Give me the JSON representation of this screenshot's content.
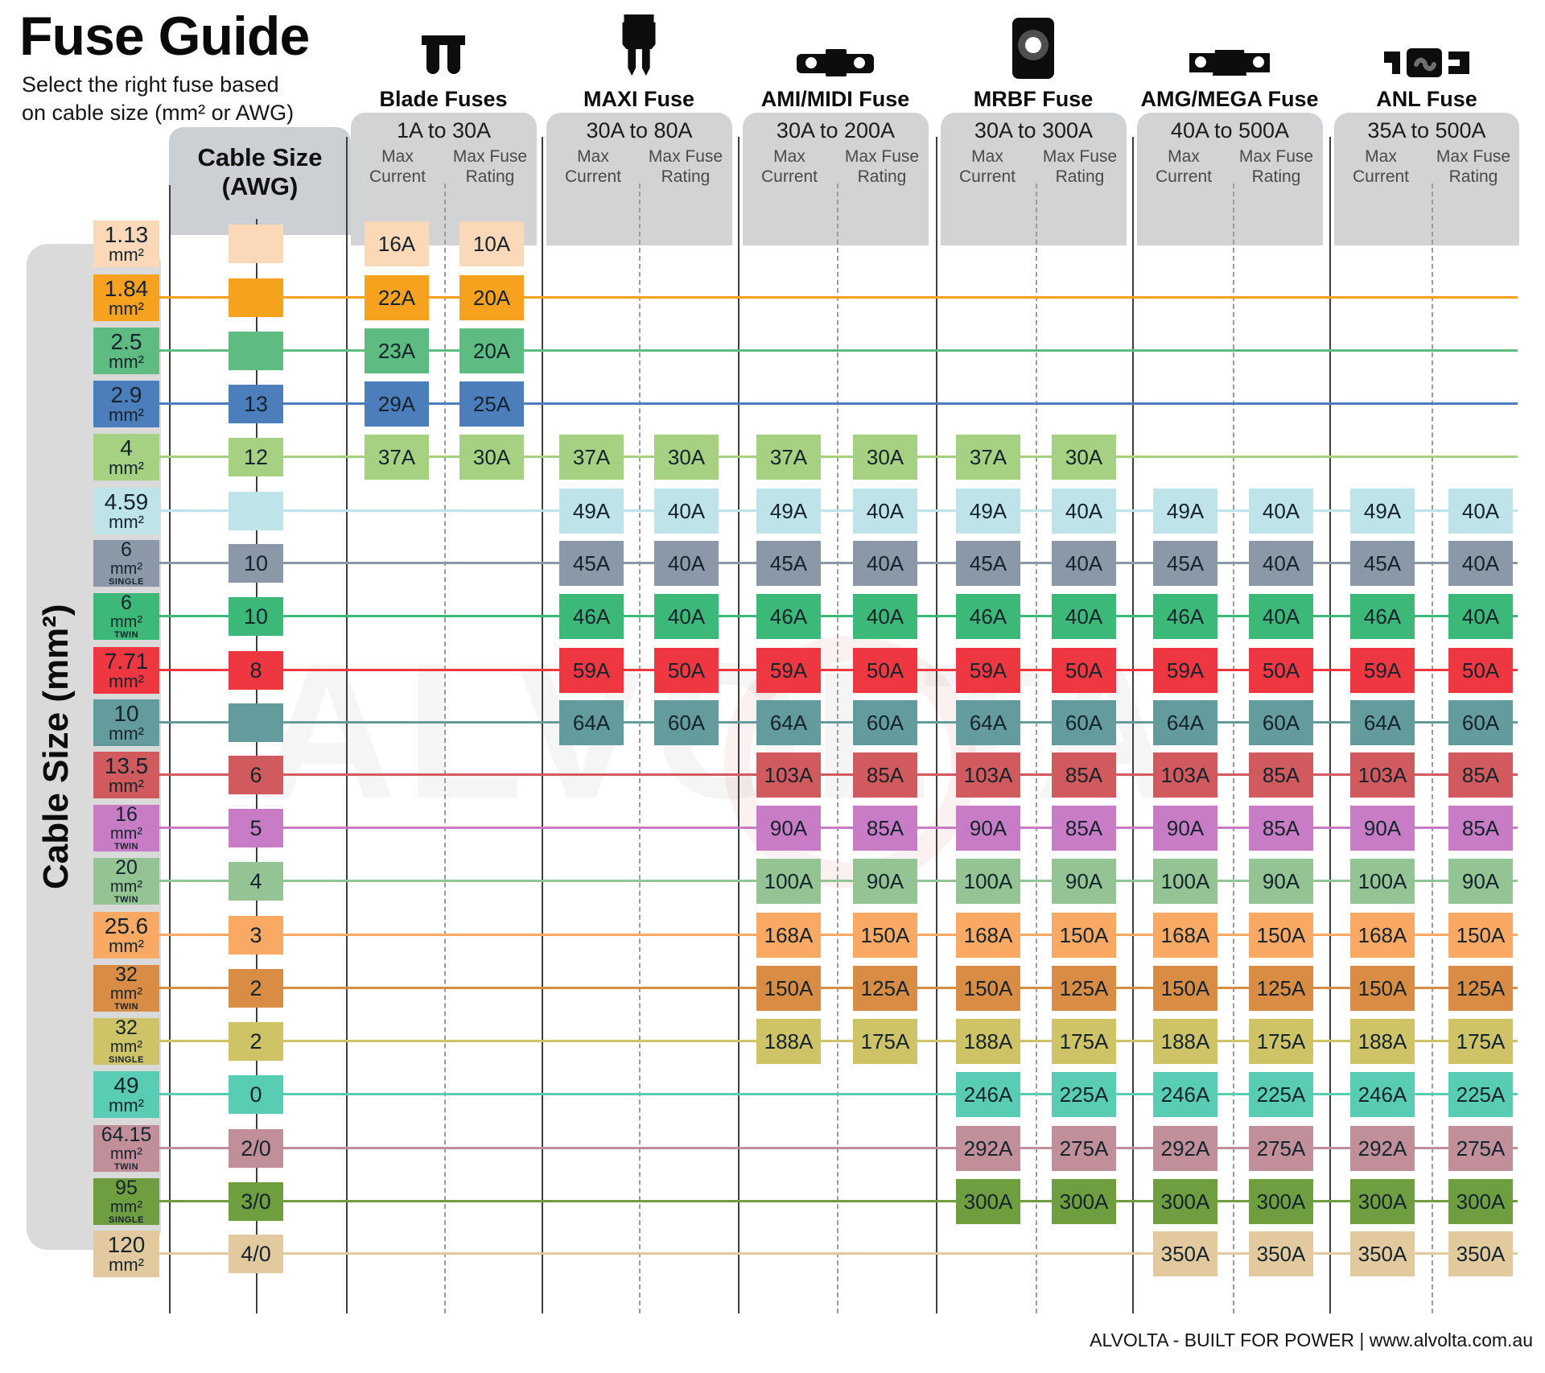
{
  "title": "Fuse Guide",
  "subtitle": "Select the right fuse based\non cable size (mm² or AWG)",
  "left_axis_label": "Cable Size (mm²)",
  "awg_header": "Cable Size\n(AWG)",
  "mm2_unit": "mm²",
  "col_headers": {
    "max_current": "Max\nCurrent",
    "max_fuse_rating": "Max Fuse\nRating"
  },
  "fuse_types": [
    {
      "name": "Blade Fuses",
      "range": "1A to 30A",
      "icon": "blade-fuse-icon"
    },
    {
      "name": "MAXI Fuse",
      "range": "30A to 80A",
      "icon": "maxi-fuse-icon"
    },
    {
      "name": "AMI/MIDI Fuse",
      "range": "30A to 200A",
      "icon": "ami-midi-fuse-icon"
    },
    {
      "name": "MRBF Fuse",
      "range": "30A to 300A",
      "icon": "mrbf-fuse-icon"
    },
    {
      "name": "AMG/MEGA Fuse",
      "range": "40A to 500A",
      "icon": "amg-mega-fuse-icon"
    },
    {
      "name": "ANL Fuse",
      "range": "35A to 500A",
      "icon": "anl-fuse-icon"
    }
  ],
  "watermark": "ALVOLTA",
  "footer": "ALVOLTA - BUILT FOR POWER | www.alvolta.com.au",
  "chart_data": {
    "type": "table",
    "row_axis": "Cable Size (mm²)",
    "secondary_row_axis": "Cable Size (AWG)",
    "groups": [
      "Blade Fuses",
      "MAXI Fuse",
      "AMI/MIDI Fuse",
      "MRBF Fuse",
      "AMG/MEGA Fuse",
      "ANL Fuse"
    ],
    "group_ranges": [
      "1A to 30A",
      "30A to 80A",
      "30A to 200A",
      "30A to 300A",
      "40A to 500A",
      "35A to 500A"
    ],
    "columns_per_group": [
      "Max Current",
      "Max Fuse Rating"
    ],
    "rows": [
      {
        "mm2": "1.13",
        "note": "",
        "awg": "",
        "color": "#FBD9B8",
        "line": false,
        "values": [
          [
            "16A",
            "10A"
          ],
          null,
          null,
          null,
          null,
          null
        ]
      },
      {
        "mm2": "1.84",
        "note": "",
        "awg": "",
        "color": "#F6A21E",
        "line": true,
        "values": [
          [
            "22A",
            "20A"
          ],
          null,
          null,
          null,
          null,
          null
        ]
      },
      {
        "mm2": "2.5",
        "note": "",
        "awg": "",
        "color": "#5EBC82",
        "line": true,
        "values": [
          [
            "23A",
            "20A"
          ],
          null,
          null,
          null,
          null,
          null
        ]
      },
      {
        "mm2": "2.9",
        "note": "",
        "awg": "13",
        "color": "#4B7EBB",
        "line": true,
        "values": [
          [
            "29A",
            "25A"
          ],
          null,
          null,
          null,
          null,
          null
        ]
      },
      {
        "mm2": "4",
        "note": "",
        "awg": "12",
        "color": "#A6D183",
        "line": true,
        "values": [
          [
            "37A",
            "30A"
          ],
          [
            "37A",
            "30A"
          ],
          [
            "37A",
            "30A"
          ],
          [
            "37A",
            "30A"
          ],
          null,
          null
        ]
      },
      {
        "mm2": "4.59",
        "note": "",
        "awg": "",
        "color": "#BEE3E8",
        "line": true,
        "values": [
          null,
          [
            "49A",
            "40A"
          ],
          [
            "49A",
            "40A"
          ],
          [
            "49A",
            "40A"
          ],
          [
            "49A",
            "40A"
          ],
          [
            "49A",
            "40A"
          ]
        ]
      },
      {
        "mm2": "6",
        "note": "SINGLE",
        "awg": "10",
        "color": "#8A98A8",
        "line": true,
        "values": [
          null,
          [
            "45A",
            "40A"
          ],
          [
            "45A",
            "40A"
          ],
          [
            "45A",
            "40A"
          ],
          [
            "45A",
            "40A"
          ],
          [
            "45A",
            "40A"
          ]
        ]
      },
      {
        "mm2": "6",
        "note": "TWIN",
        "awg": "10",
        "color": "#3CB878",
        "line": true,
        "values": [
          null,
          [
            "46A",
            "40A"
          ],
          [
            "46A",
            "40A"
          ],
          [
            "46A",
            "40A"
          ],
          [
            "46A",
            "40A"
          ],
          [
            "46A",
            "40A"
          ]
        ]
      },
      {
        "mm2": "7.71",
        "note": "",
        "awg": "8",
        "color": "#EE3740",
        "line": true,
        "values": [
          null,
          [
            "59A",
            "50A"
          ],
          [
            "59A",
            "50A"
          ],
          [
            "59A",
            "50A"
          ],
          [
            "59A",
            "50A"
          ],
          [
            "59A",
            "50A"
          ]
        ]
      },
      {
        "mm2": "10",
        "note": "",
        "awg": "",
        "color": "#649B9D",
        "line": true,
        "values": [
          null,
          [
            "64A",
            "60A"
          ],
          [
            "64A",
            "60A"
          ],
          [
            "64A",
            "60A"
          ],
          [
            "64A",
            "60A"
          ],
          [
            "64A",
            "60A"
          ]
        ]
      },
      {
        "mm2": "13.5",
        "note": "",
        "awg": "6",
        "color": "#D15A5E",
        "line": true,
        "values": [
          null,
          null,
          [
            "103A",
            "85A"
          ],
          [
            "103A",
            "85A"
          ],
          [
            "103A",
            "85A"
          ],
          [
            "103A",
            "85A"
          ]
        ]
      },
      {
        "mm2": "16",
        "note": "TWIN",
        "awg": "5",
        "color": "#C77CC5",
        "line": true,
        "values": [
          null,
          null,
          [
            "90A",
            "85A"
          ],
          [
            "90A",
            "85A"
          ],
          [
            "90A",
            "85A"
          ],
          [
            "90A",
            "85A"
          ]
        ]
      },
      {
        "mm2": "20",
        "note": "TWIN",
        "awg": "4",
        "color": "#94C494",
        "line": true,
        "values": [
          null,
          null,
          [
            "100A",
            "90A"
          ],
          [
            "100A",
            "90A"
          ],
          [
            "100A",
            "90A"
          ],
          [
            "100A",
            "90A"
          ]
        ]
      },
      {
        "mm2": "25.6",
        "note": "",
        "awg": "3",
        "color": "#F9A963",
        "line": true,
        "values": [
          null,
          null,
          [
            "168A",
            "150A"
          ],
          [
            "168A",
            "150A"
          ],
          [
            "168A",
            "150A"
          ],
          [
            "168A",
            "150A"
          ]
        ]
      },
      {
        "mm2": "32",
        "note": "TWIN",
        "awg": "2",
        "color": "#D98C43",
        "line": true,
        "values": [
          null,
          null,
          [
            "150A",
            "125A"
          ],
          [
            "150A",
            "125A"
          ],
          [
            "150A",
            "125A"
          ],
          [
            "150A",
            "125A"
          ]
        ]
      },
      {
        "mm2": "32",
        "note": "SINGLE",
        "awg": "2",
        "color": "#CFC368",
        "line": true,
        "values": [
          null,
          null,
          [
            "188A",
            "175A"
          ],
          [
            "188A",
            "175A"
          ],
          [
            "188A",
            "175A"
          ],
          [
            "188A",
            "175A"
          ]
        ]
      },
      {
        "mm2": "49",
        "note": "",
        "awg": "0",
        "color": "#58CDB3",
        "line": true,
        "values": [
          null,
          null,
          null,
          [
            "246A",
            "225A"
          ],
          [
            "246A",
            "225A"
          ],
          [
            "246A",
            "225A"
          ]
        ]
      },
      {
        "mm2": "64.15",
        "note": "TWIN",
        "awg": "2/0",
        "color": "#C18F99",
        "line": true,
        "values": [
          null,
          null,
          null,
          [
            "292A",
            "275A"
          ],
          [
            "292A",
            "275A"
          ],
          [
            "292A",
            "275A"
          ]
        ]
      },
      {
        "mm2": "95",
        "note": "SINGLE",
        "awg": "3/0",
        "color": "#6F9E40",
        "line": true,
        "values": [
          null,
          null,
          null,
          [
            "300A",
            "300A"
          ],
          [
            "300A",
            "300A"
          ],
          [
            "300A",
            "300A"
          ]
        ]
      },
      {
        "mm2": "120",
        "note": "",
        "awg": "4/0",
        "color": "#E3C99E",
        "line": true,
        "values": [
          null,
          null,
          null,
          null,
          [
            "350A",
            "350A"
          ],
          [
            "350A",
            "350A"
          ]
        ]
      }
    ]
  }
}
